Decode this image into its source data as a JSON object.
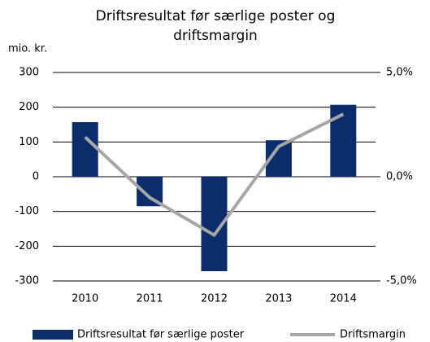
{
  "chart_data": {
    "type": "bar_line",
    "title": "Driftsresultat før særlige poster og driftsmargin",
    "ylabel": "mio. kr.",
    "categories": [
      "2010",
      "2011",
      "2012",
      "2013",
      "2014"
    ],
    "series": [
      {
        "name": "Driftsresultat før særlige poster",
        "type": "bar",
        "color": "#0b2d6b",
        "values": [
          157,
          -85,
          -272,
          105,
          207
        ]
      },
      {
        "name": "Driftsmargin",
        "type": "line",
        "axis": "y2",
        "color": "#a6a6a6",
        "values": [
          1.9,
          -1.0,
          -2.8,
          1.45,
          3.0
        ]
      }
    ],
    "ylim": [
      -300,
      300
    ],
    "yticks": [
      -300,
      -200,
      -100,
      0,
      100,
      200,
      300
    ],
    "y2lim": [
      -5,
      5
    ],
    "y2ticks": [
      {
        "value": -5,
        "label": "-5,0%"
      },
      {
        "value": 0,
        "label": "0,0%"
      },
      {
        "value": 5,
        "label": "5,0%"
      }
    ],
    "grid": true
  }
}
